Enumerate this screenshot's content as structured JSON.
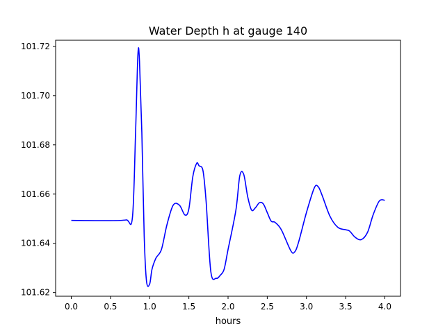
{
  "chart_data": {
    "type": "line",
    "title": "Water Depth h at gauge 140",
    "xlabel": "hours",
    "ylabel": "",
    "xlim": [
      -0.2,
      4.2
    ],
    "ylim": [
      101.6185,
      101.7225
    ],
    "xticks": [
      0.0,
      0.5,
      1.0,
      1.5,
      2.0,
      2.5,
      3.0,
      3.5,
      4.0
    ],
    "xtick_labels": [
      "0.0",
      "0.5",
      "1.0",
      "1.5",
      "2.0",
      "2.5",
      "3.0",
      "3.5",
      "4.0"
    ],
    "yticks": [
      101.62,
      101.64,
      101.66,
      101.68,
      101.7,
      101.72
    ],
    "ytick_labels": [
      "101.62",
      "101.64",
      "101.66",
      "101.68",
      "101.70",
      "101.72"
    ],
    "grid": false,
    "colors": {
      "line": "#0000ff"
    },
    "series": [
      {
        "x": [
          0.0,
          0.5,
          0.7,
          0.78,
          0.82,
          0.85,
          0.87,
          0.9,
          0.93,
          0.96,
          1.0,
          1.03,
          1.08,
          1.15,
          1.22,
          1.3,
          1.38,
          1.45,
          1.5,
          1.55,
          1.6,
          1.63,
          1.68,
          1.72,
          1.78,
          1.85,
          1.9,
          1.95,
          2.0,
          2.1,
          2.15,
          2.2,
          2.25,
          2.3,
          2.35,
          2.4,
          2.45,
          2.5,
          2.55,
          2.6,
          2.68,
          2.8,
          2.85,
          2.9,
          3.0,
          3.1,
          3.15,
          3.2,
          3.3,
          3.4,
          3.5,
          3.55,
          3.62,
          3.7,
          3.78,
          3.85,
          3.93,
          4.0
        ],
        "y": [
          101.6493,
          101.6492,
          101.6495,
          101.6505,
          101.685,
          101.7168,
          101.714,
          101.685,
          101.643,
          101.6245,
          101.6235,
          101.6295,
          101.634,
          101.6375,
          101.6475,
          101.6555,
          101.6555,
          101.6515,
          101.654,
          101.667,
          101.6725,
          101.6715,
          101.6695,
          101.657,
          101.6285,
          101.6258,
          101.627,
          101.6295,
          101.6375,
          101.6535,
          101.6675,
          101.668,
          101.659,
          101.6535,
          101.6545,
          101.6565,
          101.656,
          101.6525,
          101.649,
          101.6485,
          101.6455,
          101.637,
          101.6365,
          101.6405,
          101.6525,
          101.6625,
          101.663,
          101.6595,
          101.651,
          101.6465,
          101.6455,
          101.645,
          101.6425,
          101.6415,
          101.6445,
          101.6515,
          101.6572,
          101.6575
        ]
      }
    ]
  }
}
